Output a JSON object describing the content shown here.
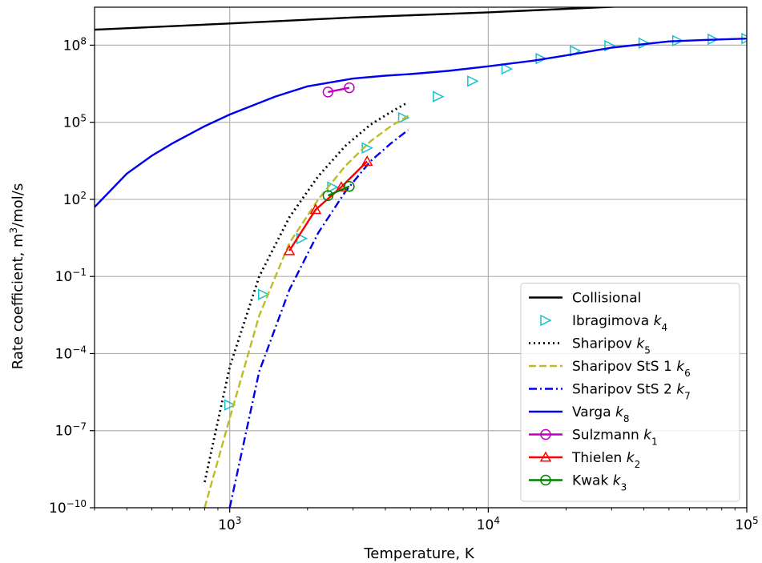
{
  "chart_data": {
    "type": "line",
    "xlabel": "Temperature, K",
    "ylabel_prefix": "Rate coefficient, m",
    "ylabel_sup": "3",
    "ylabel_suffix": "/mol/s",
    "xscale": "log",
    "yscale": "log",
    "xlim": [
      300,
      100000
    ],
    "ylim": [
      1e-10,
      3000000000.0
    ],
    "grid": true,
    "legend_position": "bottom-right",
    "x_ticks": [
      {
        "value": 1000,
        "base": "10",
        "exp": "3"
      },
      {
        "value": 10000,
        "base": "10",
        "exp": "4"
      },
      {
        "value": 100000,
        "base": "10",
        "exp": "5"
      }
    ],
    "y_ticks": [
      {
        "value": 1e-10,
        "base": "10",
        "exp": "−10"
      },
      {
        "value": 1e-07,
        "base": "10",
        "exp": "−7"
      },
      {
        "value": 0.0001,
        "base": "10",
        "exp": "−4"
      },
      {
        "value": 0.1,
        "base": "10",
        "exp": "−1"
      },
      {
        "value": 100,
        "base": "10",
        "exp": "2"
      },
      {
        "value": 100000,
        "base": "10",
        "exp": "5"
      },
      {
        "value": 100000000,
        "base": "10",
        "exp": "8"
      }
    ],
    "series": [
      {
        "name": "Collisional",
        "name_sub": "",
        "color": "#000000",
        "style": "solid",
        "marker": "none",
        "x": [
          300,
          1000,
          3000,
          10000,
          30000,
          100000
        ],
        "y": [
          400000000.0,
          700000000.0,
          1200000000.0,
          1900000000.0,
          3100000000.0,
          5800000000.0
        ]
      },
      {
        "name": "Ibragimova ",
        "name_sub": "4",
        "color": "#17becf",
        "style": "none",
        "marker": "triangle-right",
        "x": [
          1000,
          1350,
          1900,
          2500,
          3400,
          4700,
          6400,
          8700,
          11800,
          16000,
          21700,
          29500,
          40000,
          54000,
          74000,
          100000
        ],
        "y": [
          1e-06,
          0.02,
          3.0,
          300,
          10000.0,
          150000.0,
          1000000.0,
          4000000.0,
          12000000.0,
          30000000.0,
          60000000.0,
          95000000.0,
          120000000.0,
          150000000.0,
          170000000.0,
          180000000.0
        ]
      },
      {
        "name": "Sharipov ",
        "name_sub": "5",
        "color": "#000000",
        "style": "dotted",
        "marker": "none",
        "x": [
          800,
          1000,
          1300,
          1700,
          2200,
          2800,
          3500,
          4200,
          4900
        ],
        "y": [
          1e-09,
          3e-05,
          0.1,
          20,
          800,
          12000.0,
          80000.0,
          250000.0,
          600000.0
        ]
      },
      {
        "name": "Sharipov StS 1 ",
        "name_sub": "6",
        "color": "#bcbd22",
        "style": "dashed",
        "marker": "none",
        "x": [
          800,
          1000,
          1300,
          1700,
          2200,
          2800,
          3500,
          4200,
          4900
        ],
        "y": [
          1e-10,
          3e-07,
          0.003,
          2.0,
          100,
          2000.0,
          18000.0,
          70000.0,
          180000.0
        ]
      },
      {
        "name": "Sharipov StS 2 ",
        "name_sub": "7",
        "color": "#0000ee",
        "style": "dashdot",
        "marker": "none",
        "x": [
          1000,
          1300,
          1700,
          2200,
          2800,
          3500,
          4200,
          4900
        ],
        "y": [
          1e-10,
          2e-05,
          0.03,
          5.0,
          200,
          3000.0,
          15000.0,
          50000.0
        ]
      },
      {
        "name": "Varga ",
        "name_sub": "8",
        "color": "#0000ee",
        "style": "solid",
        "marker": "none",
        "x": [
          300,
          400,
          500,
          600,
          800,
          1000,
          1500,
          2000,
          3000,
          4000,
          5000,
          7000,
          10000,
          15000,
          20000,
          30000,
          50000,
          70000,
          100000
        ],
        "y": [
          50,
          1000.0,
          5000.0,
          15000.0,
          70000.0,
          200000.0,
          1000000.0,
          2500000.0,
          5000000.0,
          6500000.0,
          7500000.0,
          10000000.0,
          15000000.0,
          25000000.0,
          40000000.0,
          80000000.0,
          140000000.0,
          160000000.0,
          180000000.0
        ]
      },
      {
        "name": "Sulzmann ",
        "name_sub": "1",
        "color": "#bf00bf",
        "style": "solid",
        "marker": "circle",
        "x": [
          2400,
          2900
        ],
        "y": [
          1500000.0,
          2200000.0
        ]
      },
      {
        "name": "Thielen ",
        "name_sub": "2",
        "color": "#ff0000",
        "style": "solid",
        "marker": "triangle-up",
        "x": [
          1700,
          2150,
          2700,
          3400
        ],
        "y": [
          1.0,
          40,
          300,
          3000.0
        ]
      },
      {
        "name": "Kwak ",
        "name_sub": "3",
        "color": "#008000",
        "style": "solid",
        "marker": "circle",
        "x": [
          2400,
          2900
        ],
        "y": [
          140,
          320
        ]
      }
    ]
  }
}
